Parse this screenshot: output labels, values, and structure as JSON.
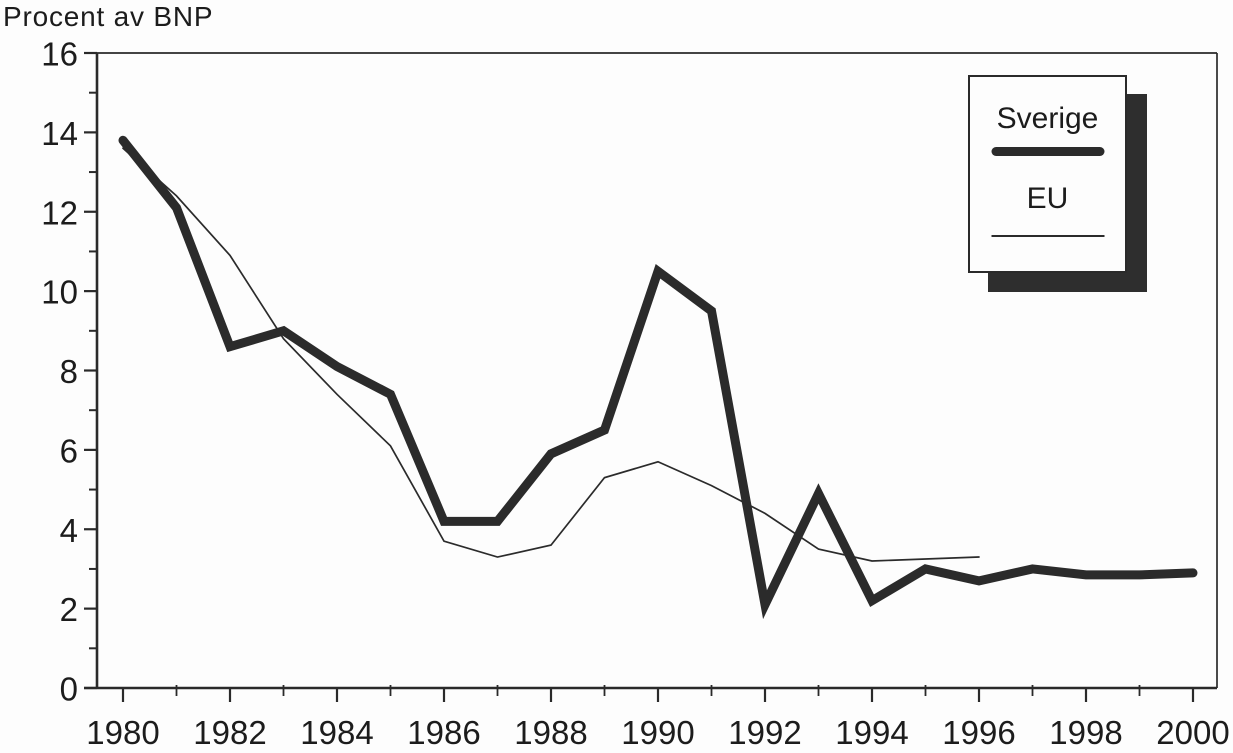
{
  "page": {
    "title": "Procent av BNP"
  },
  "colors": {
    "ink": "#2b2b2b",
    "axis": "#2a2a2a",
    "text": "#1c1c1c",
    "background": "#fdfdfd",
    "legend_shadow": "#2e2e2e"
  },
  "legend": {
    "items": [
      {
        "label": "Sverige",
        "line_style": "thick"
      },
      {
        "label": "EU",
        "line_style": "thin"
      }
    ]
  },
  "chart_data": {
    "type": "line",
    "title": "Procent av BNP",
    "xlabel": "",
    "ylabel": "Procent av BNP",
    "ylim": [
      0,
      16
    ],
    "xlim": [
      1979.5,
      2000.45
    ],
    "grid": false,
    "legend_position": "top-right",
    "yticks_major": [
      0,
      2,
      4,
      6,
      8,
      10,
      12,
      14,
      16
    ],
    "yticks_minor": [
      1,
      3,
      5,
      7,
      9,
      11,
      13,
      15
    ],
    "xticks_major": [
      1980,
      1982,
      1984,
      1986,
      1988,
      1990,
      1992,
      1994,
      1996,
      1998,
      2000
    ],
    "xticks_minor": [
      1981,
      1983,
      1985,
      1987,
      1989,
      1991,
      1993,
      1995,
      1997,
      1999
    ],
    "series": [
      {
        "name": "Sverige",
        "style": "thick",
        "x": [
          1980,
          1981,
          1982,
          1983,
          1984,
          1985,
          1986,
          1987,
          1988,
          1989,
          1990,
          1991,
          1992,
          1993,
          1994,
          1995,
          1996,
          1997,
          1998,
          1999,
          2000
        ],
        "values": [
          13.8,
          12.1,
          8.6,
          9.0,
          8.1,
          7.4,
          4.2,
          4.2,
          5.9,
          6.5,
          10.5,
          9.5,
          2.1,
          4.9,
          2.2,
          3.0,
          2.7,
          3.0,
          2.85,
          2.85,
          2.9
        ]
      },
      {
        "name": "EU",
        "style": "thin",
        "x": [
          1980,
          1981,
          1982,
          1983,
          1984,
          1985,
          1986,
          1987,
          1988,
          1989,
          1990,
          1991,
          1992,
          1993,
          1994,
          1995,
          1996
        ],
        "values": [
          13.6,
          12.4,
          10.9,
          8.8,
          7.4,
          6.1,
          3.7,
          3.3,
          3.6,
          5.3,
          5.7,
          5.1,
          4.4,
          3.5,
          3.2,
          3.25,
          3.3
        ]
      }
    ]
  }
}
